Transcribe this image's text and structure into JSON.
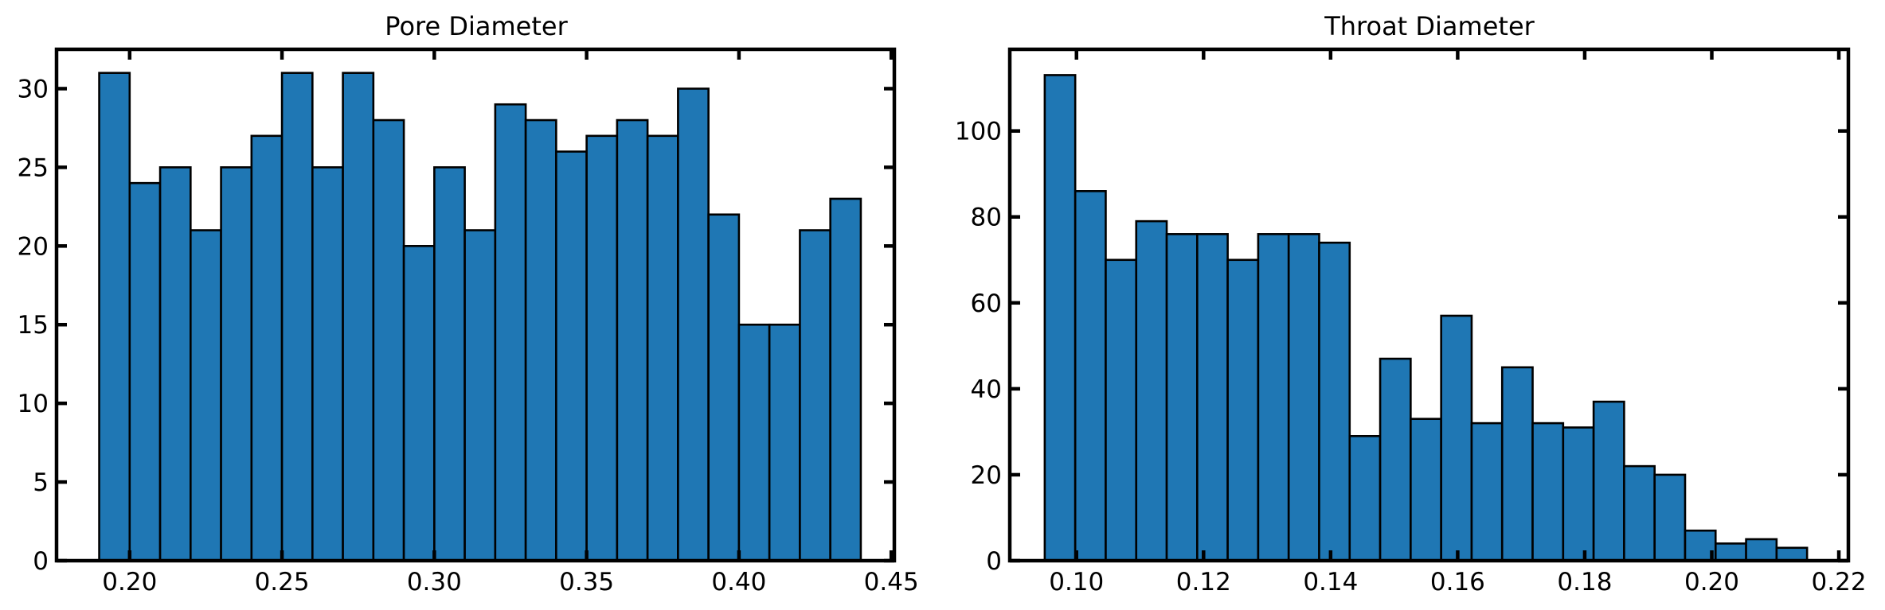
{
  "chart_data": [
    {
      "type": "bar",
      "title": "Pore Diameter",
      "xlabel": "",
      "ylabel": "",
      "bin_width": 0.01,
      "bin_edges_start": 0.19,
      "values": [
        31,
        24,
        25,
        21,
        25,
        27,
        31,
        25,
        31,
        28,
        20,
        25,
        21,
        29,
        28,
        26,
        27,
        28,
        27,
        30,
        22,
        15,
        15,
        21,
        23
      ],
      "xlim": [
        0.176,
        0.451
      ],
      "ylim": [
        0,
        32.5
      ],
      "xticks": [
        0.2,
        0.25,
        0.3,
        0.35,
        0.4,
        0.45
      ],
      "xtick_labels": [
        "0.20",
        "0.25",
        "0.30",
        "0.35",
        "0.40",
        "0.45"
      ],
      "yticks": [
        0,
        5,
        10,
        15,
        20,
        25,
        30
      ],
      "ytick_labels": [
        "0",
        "5",
        "10",
        "15",
        "20",
        "25",
        "30"
      ],
      "grid": false,
      "bar_color": "#1f77b4",
      "edge_color": "#000000"
    },
    {
      "type": "bar",
      "title": "Throat Diameter",
      "xlabel": "",
      "ylabel": "",
      "bin_width": 0.0048,
      "bin_edges_start": 0.095,
      "values": [
        113,
        86,
        70,
        79,
        76,
        76,
        70,
        76,
        76,
        74,
        29,
        47,
        33,
        57,
        32,
        45,
        32,
        31,
        37,
        22,
        20,
        7,
        4,
        5,
        3
      ],
      "xlim": [
        0.0895,
        0.2215
      ],
      "ylim": [
        0,
        119
      ],
      "xticks": [
        0.1,
        0.12,
        0.14,
        0.16,
        0.18,
        0.2,
        0.22
      ],
      "xtick_labels": [
        "0.10",
        "0.12",
        "0.14",
        "0.16",
        "0.18",
        "0.20",
        "0.22"
      ],
      "yticks": [
        0,
        20,
        40,
        60,
        80,
        100
      ],
      "ytick_labels": [
        "0",
        "20",
        "40",
        "60",
        "80",
        "100"
      ],
      "grid": false,
      "bar_color": "#1f77b4",
      "edge_color": "#000000"
    }
  ]
}
